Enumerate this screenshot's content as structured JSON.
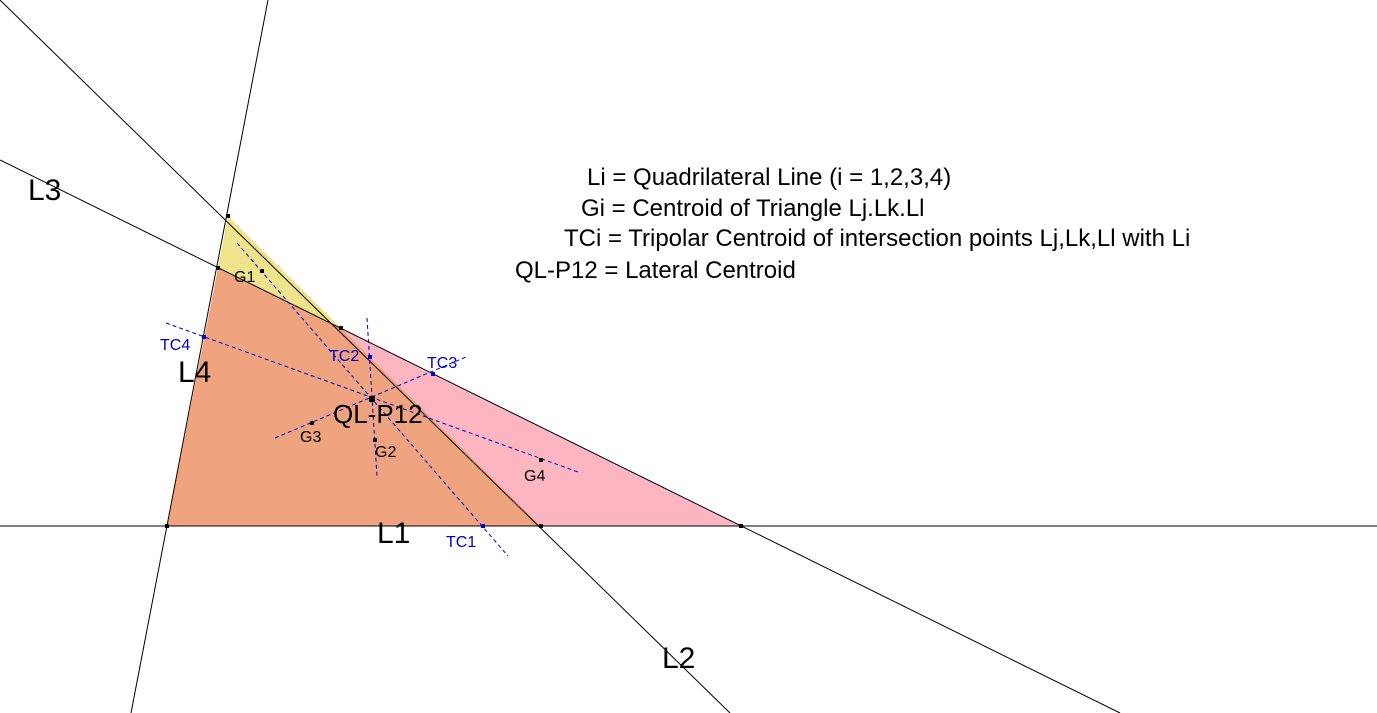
{
  "lines": [
    "L1",
    "L2",
    "L3",
    "L4"
  ],
  "centroids": [
    "G1",
    "G2",
    "G3",
    "G4"
  ],
  "tripolar_centroids": [
    "TC1",
    "TC2",
    "TC3",
    "TC4"
  ],
  "lateral_centroid": "QL-P12",
  "legend": [
    "Li = Quadrilateral Line (i = 1,2,3,4)",
    "Gi = Centroid of Triangle Lj.Lk.Ll",
    "TCi = Tripolar Centroid of intersection points Lj,Lk,Ll with Li",
    "QL-P12 = Lateral Centroid"
  ]
}
